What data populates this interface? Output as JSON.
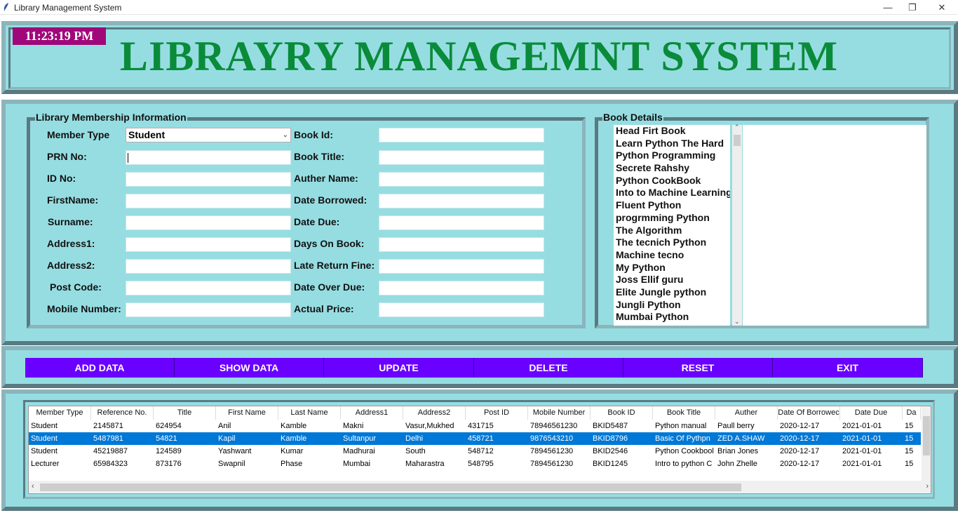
{
  "window": {
    "title": "Library Management System",
    "minimize": "—",
    "restore": "❐",
    "close": "✕"
  },
  "header": {
    "clock": "11:23:19 PM",
    "title": "LIBRAYRY MANAGEMNT SYSTEM"
  },
  "membership": {
    "label": "Library Membership Information",
    "member_type_label": "Member Type",
    "member_type_value": "Student",
    "left_fields": [
      "PRN No:",
      "ID No:",
      "FirstName:",
      "Surname:",
      "Address1:",
      "Address2:",
      "Post Code:",
      "Mobile Number:"
    ],
    "right_fields": [
      "Book Id:",
      "Book Title:",
      "Auther Name:",
      "Date Borrowed:",
      "Date Due:",
      "Days On Book:",
      "Late Return Fine:",
      "Date Over Due:",
      "Actual Price:"
    ]
  },
  "book_details": {
    "label": "Book Details",
    "books": [
      "Head Firt Book",
      "Learn Python The Hard",
      "Python Programming",
      "Secrete Rahshy",
      "Python CookBook",
      "Into to Machine Learning",
      "Fluent Python",
      "progrmming Python",
      "The Algorithm",
      "The tecnich Python",
      "Machine tecno",
      "My Python",
      "Joss Ellif guru",
      "Elite Jungle python",
      "Jungli Python",
      "Mumbai Python"
    ]
  },
  "buttons": [
    "ADD DATA",
    "SHOW DATA",
    "UPDATE",
    "DELETE",
    "RESET",
    "EXIT"
  ],
  "table": {
    "columns": [
      "Member Type",
      "Reference No.",
      "Title",
      "First Name",
      "Last Name",
      "Address1",
      "Address2",
      "Post ID",
      "Mobile Number",
      "Book ID",
      "Book Title",
      "Auther",
      "Date Of Borrowec",
      "Date Due",
      "Da"
    ],
    "rows": [
      [
        "Student",
        "2145871",
        "624954",
        "Anil",
        "Kamble",
        "Makni",
        "Vasur,Mukhed",
        "431715",
        "78946561230",
        "BKID5487",
        "Python manual",
        "Paull berry",
        "2020-12-17",
        "2021-01-01",
        "15"
      ],
      [
        "Student",
        "5487981",
        "54821",
        "Kapil",
        "Kamble",
        "Sultanpur",
        "Delhi",
        "458721",
        "9876543210",
        "BKID8796",
        "Basic Of Pythpn",
        "ZED A.SHAW",
        "2020-12-17",
        "2021-01-01",
        "15"
      ],
      [
        "Student",
        "45219887",
        "124589",
        "Yashwant",
        "Kumar",
        "Madhurai",
        "South",
        "548712",
        "7894561230",
        "BKID2546",
        "Python Cookbool",
        "Brian Jones",
        "2020-12-17",
        "2021-01-01",
        "15"
      ],
      [
        "Lecturer",
        "65984323",
        "873176",
        "Swapnil",
        "Phase",
        "Mumbai",
        "Maharastra",
        "548795",
        "7894561230",
        "BKID1245",
        "Intro to python C",
        "John Zhelle",
        "2020-12-17",
        "2021-01-01",
        "15"
      ]
    ],
    "selected_row": 1
  }
}
